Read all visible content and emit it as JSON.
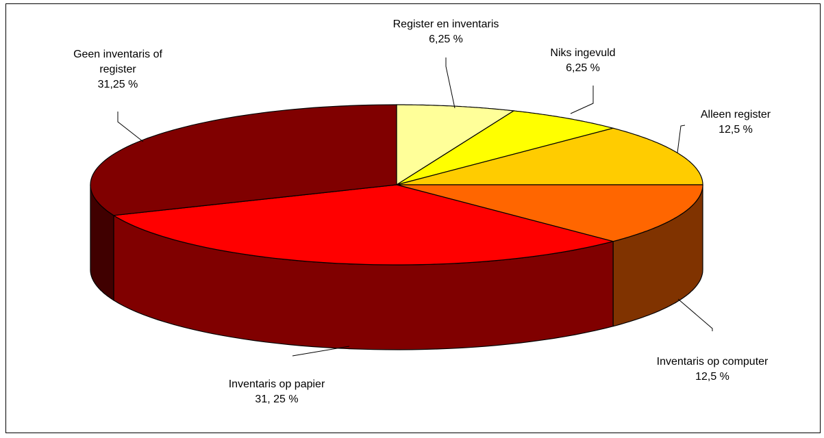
{
  "chart_data": {
    "type": "pie",
    "style": "3d",
    "slices": [
      {
        "label": "Register en inventaris",
        "value_label": "6,25 %",
        "value": 6.25,
        "color": "#FFFF99"
      },
      {
        "label": "Niks ingevuld",
        "value_label": "6,25 %",
        "value": 6.25,
        "color": "#FFFF00"
      },
      {
        "label": "Alleen register",
        "value_label": "12,5 %",
        "value": 12.5,
        "color": "#FFCC00"
      },
      {
        "label": "Inventaris op computer",
        "value_label": "12,5 %",
        "value": 12.5,
        "color": "#FF6600"
      },
      {
        "label": "Inventaris op papier",
        "value_label": "31, 25 %",
        "value": 31.25,
        "color": "#FF0000"
      },
      {
        "label": "Geen inventaris of register",
        "label_lines": [
          "Geen inventaris of",
          "register"
        ],
        "value_label": "31,25 %",
        "value": 31.25,
        "color": "#800000"
      }
    ]
  }
}
